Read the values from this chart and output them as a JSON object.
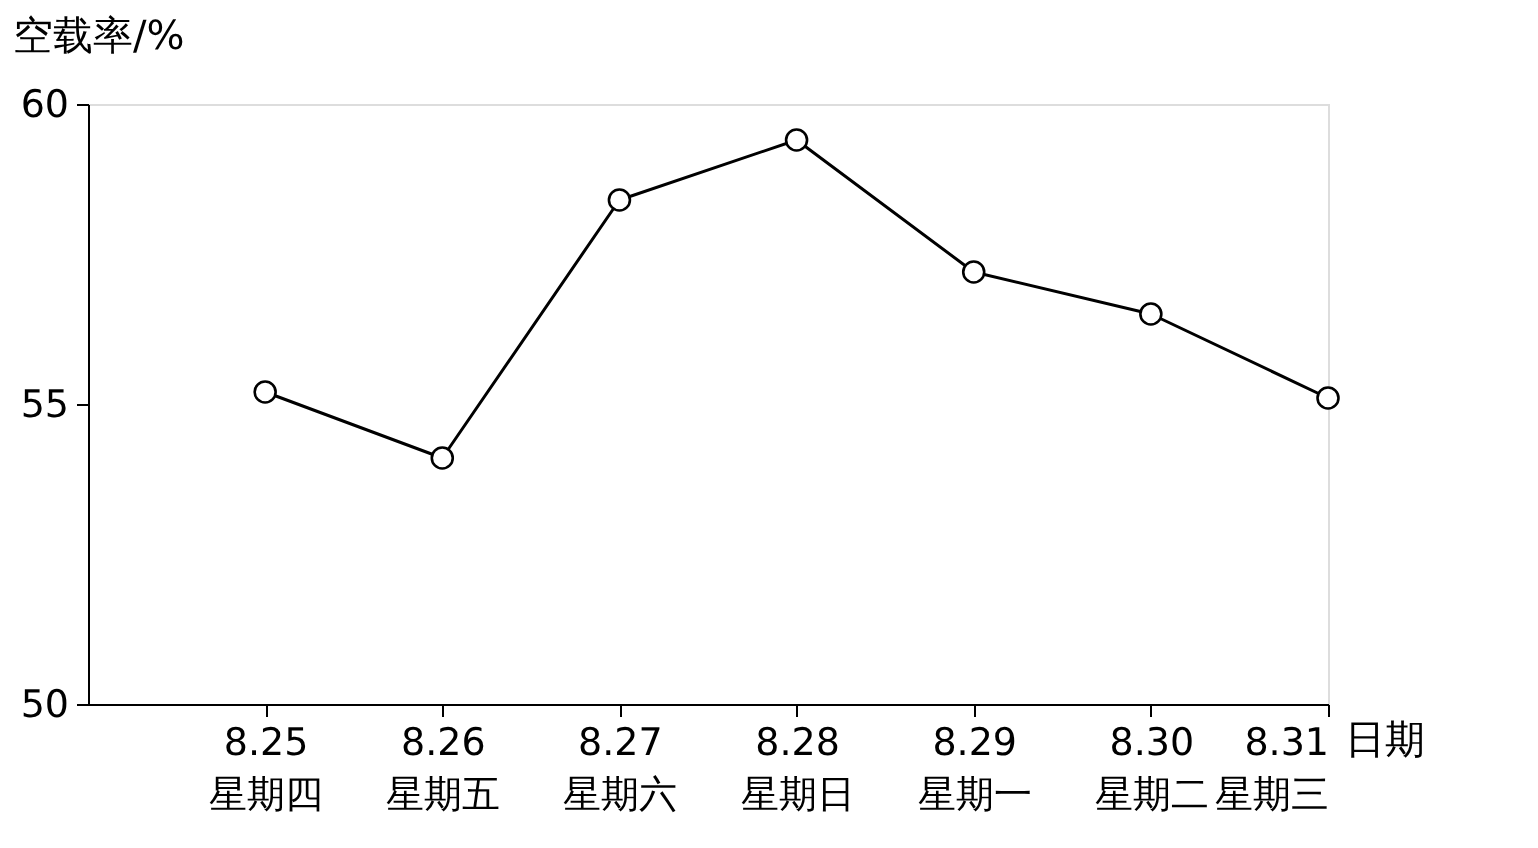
{
  "chart_data": {
    "type": "line",
    "xlabel": "日期",
    "ylabel": "空载率/%",
    "categories": [
      "8.25\n星期四",
      "8.26\n星期五",
      "8.27\n星期六",
      "8.28\n星期日",
      "8.29\n星期一",
      "8.30\n星期二",
      "8.31\n星期三"
    ],
    "series": [
      {
        "color": "#000000",
        "values": [
          55.2,
          54.1,
          58.4,
          59.4,
          57.2,
          56.5,
          55.1
        ]
      }
    ],
    "ylim": [
      50,
      60
    ],
    "yticks": [
      50,
      55,
      60
    ],
    "grid": false,
    "marker": "circle",
    "line_style": "solid"
  }
}
